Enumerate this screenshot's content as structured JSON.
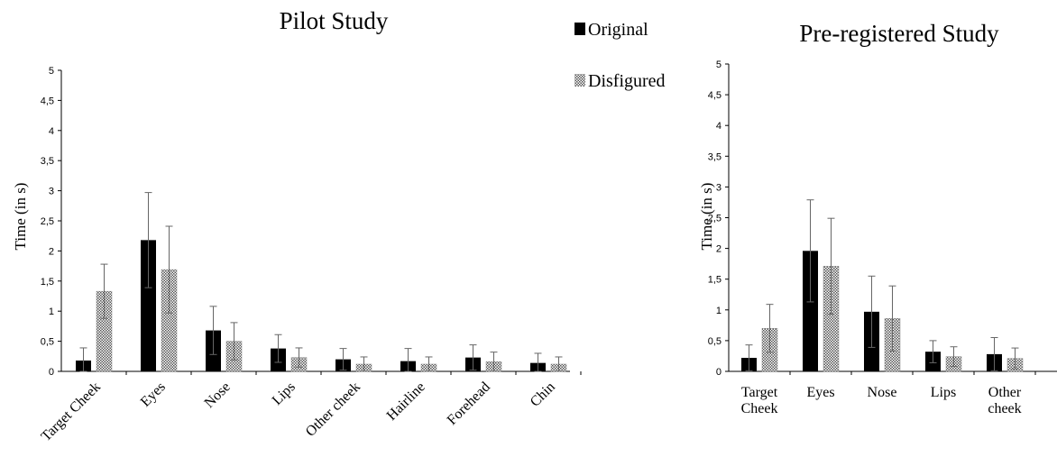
{
  "legend": {
    "original_label": "Original",
    "disfigured_label": "Disfigured",
    "original_color": "#000000",
    "disfigured_pattern": "checkered"
  },
  "chart_data": [
    {
      "type": "bar",
      "title": "Pilot Study",
      "ylabel": "Time (in s)",
      "xlabel": "",
      "ylim": [
        0,
        5
      ],
      "yticks": [
        "0",
        "0,5",
        "1",
        "1,5",
        "2",
        "2,5",
        "3",
        "3,5",
        "4",
        "4,5",
        "5"
      ],
      "categories": [
        "Target Cheek",
        "Eyes",
        "Nose",
        "Lips",
        "Other cheek",
        "Hairline",
        "Forehead",
        "Chin"
      ],
      "series": [
        {
          "name": "Original",
          "values": [
            0.18,
            2.18,
            0.68,
            0.38,
            0.2,
            0.17,
            0.23,
            0.14
          ],
          "errors": [
            0.21,
            0.79,
            0.4,
            0.23,
            0.18,
            0.21,
            0.21,
            0.16
          ]
        },
        {
          "name": "Disfigured",
          "values": [
            1.33,
            1.69,
            0.5,
            0.23,
            0.12,
            0.12,
            0.16,
            0.12
          ],
          "errors": [
            0.45,
            0.72,
            0.31,
            0.16,
            0.12,
            0.12,
            0.16,
            0.12
          ]
        }
      ]
    },
    {
      "type": "bar",
      "title": "Pre-registered Study",
      "ylabel": "Time (in s)",
      "xlabel": "",
      "ylim": [
        0,
        5
      ],
      "yticks": [
        "0",
        "0,5",
        "1",
        "1,5",
        "2",
        "2,5",
        "3",
        "3,5",
        "4",
        "4,5",
        "5"
      ],
      "categories": [
        "Target Cheek",
        "Eyes",
        "Nose",
        "Lips",
        "Other cheek"
      ],
      "series": [
        {
          "name": "Original",
          "values": [
            0.22,
            1.96,
            0.97,
            0.32,
            0.28
          ],
          "errors": [
            0.21,
            0.83,
            0.58,
            0.18,
            0.27
          ]
        },
        {
          "name": "Disfigured",
          "values": [
            0.7,
            1.71,
            0.86,
            0.24,
            0.21
          ],
          "errors": [
            0.39,
            0.78,
            0.53,
            0.16,
            0.17
          ]
        }
      ]
    }
  ]
}
